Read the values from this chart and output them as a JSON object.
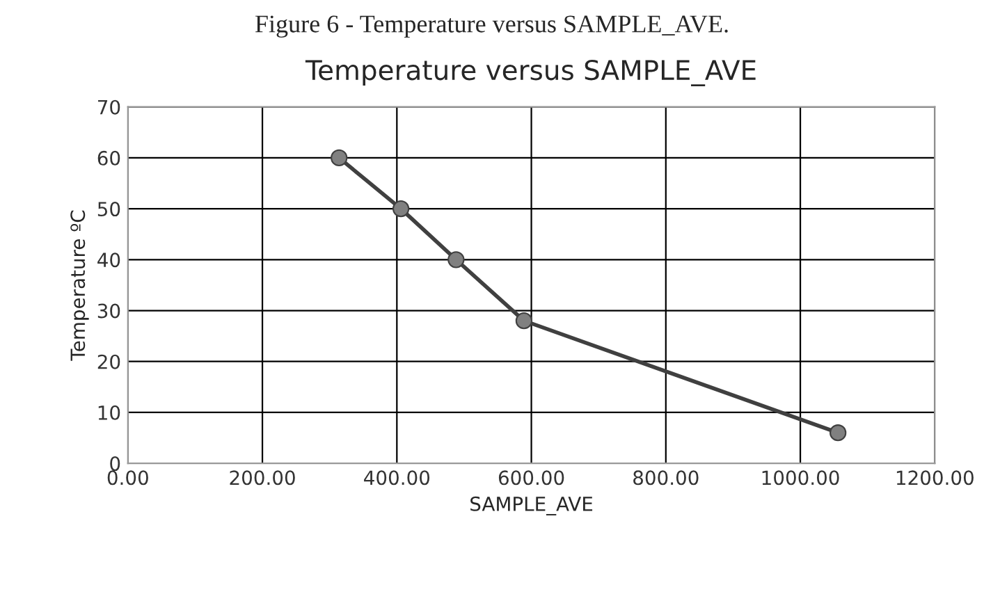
{
  "chart_data": {
    "type": "line",
    "title": "Temperature versus SAMPLE_AVE",
    "xlabel": "SAMPLE_AVE",
    "ylabel": "Temperature ºC",
    "annotations": [
      "Figure 6 - Temperature versus SAMPLE_AVE."
    ],
    "series": [
      {
        "color": "#404040",
        "x": [
          314,
          406,
          488,
          589,
          1056
        ],
        "values": [
          60,
          50,
          40,
          28,
          6
        ]
      }
    ],
    "xlim": [
      0,
      1200
    ],
    "xticks": [
      {
        "value": 0,
        "label": "0.00"
      },
      {
        "value": 200,
        "label": "200.00"
      },
      {
        "value": 400,
        "label": "400.00"
      },
      {
        "value": 600,
        "label": "600.00"
      },
      {
        "value": 800,
        "label": "800.00"
      },
      {
        "value": 1000,
        "label": "1000.00"
      },
      {
        "value": 1200,
        "label": "1200.00"
      }
    ],
    "ylim": [
      0,
      70
    ],
    "yticks": [
      0,
      10,
      20,
      30,
      40,
      50,
      60,
      70
    ],
    "grid": true,
    "marker": "circle",
    "line_style": "solid"
  }
}
